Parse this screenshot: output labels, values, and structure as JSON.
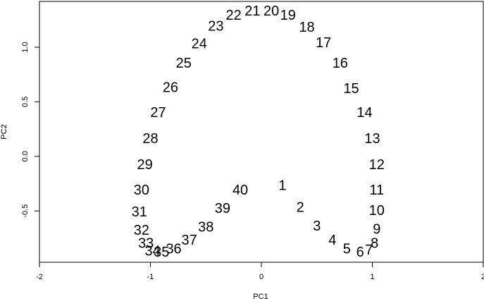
{
  "chart_data": {
    "type": "scatter",
    "title": "",
    "xlabel": "PC1",
    "ylabel": "PC2",
    "xlim": [
      -2,
      2
    ],
    "ylim": [
      -0.97,
      1.42
    ],
    "x_ticks": [
      -2,
      -1,
      0,
      1,
      2
    ],
    "x_tick_labels": [
      "-2",
      "-1",
      "0",
      "1",
      "2"
    ],
    "y_ticks": [
      -0.5,
      0.0,
      0.5,
      1.0
    ],
    "y_tick_labels": [
      "-0.5",
      "0.0",
      "0.5",
      "1.0"
    ],
    "grid": false,
    "legend": "none",
    "marker": "text labels",
    "points": [
      {
        "label": "1",
        "x": 0.19,
        "y": -0.27
      },
      {
        "label": "2",
        "x": 0.35,
        "y": -0.47
      },
      {
        "label": "3",
        "x": 0.5,
        "y": -0.64
      },
      {
        "label": "4",
        "x": 0.64,
        "y": -0.77
      },
      {
        "label": "5",
        "x": 0.77,
        "y": -0.85
      },
      {
        "label": "6",
        "x": 0.89,
        "y": -0.88
      },
      {
        "label": "7",
        "x": 0.97,
        "y": -0.86
      },
      {
        "label": "8",
        "x": 1.02,
        "y": -0.8
      },
      {
        "label": "9",
        "x": 1.04,
        "y": -0.67
      },
      {
        "label": "10",
        "x": 1.04,
        "y": -0.5
      },
      {
        "label": "11",
        "x": 1.04,
        "y": -0.31
      },
      {
        "label": "12",
        "x": 1.04,
        "y": -0.08
      },
      {
        "label": "13",
        "x": 1.0,
        "y": 0.16
      },
      {
        "label": "14",
        "x": 0.93,
        "y": 0.4
      },
      {
        "label": "15",
        "x": 0.81,
        "y": 0.62
      },
      {
        "label": "16",
        "x": 0.71,
        "y": 0.85
      },
      {
        "label": "17",
        "x": 0.56,
        "y": 1.04
      },
      {
        "label": "18",
        "x": 0.41,
        "y": 1.18
      },
      {
        "label": "19",
        "x": 0.24,
        "y": 1.29
      },
      {
        "label": "20",
        "x": 0.09,
        "y": 1.33
      },
      {
        "label": "21",
        "x": -0.08,
        "y": 1.33
      },
      {
        "label": "22",
        "x": -0.25,
        "y": 1.29
      },
      {
        "label": "23",
        "x": -0.41,
        "y": 1.19
      },
      {
        "label": "24",
        "x": -0.56,
        "y": 1.03
      },
      {
        "label": "25",
        "x": -0.7,
        "y": 0.85
      },
      {
        "label": "26",
        "x": -0.82,
        "y": 0.63
      },
      {
        "label": "27",
        "x": -0.93,
        "y": 0.4
      },
      {
        "label": "28",
        "x": -1.0,
        "y": 0.16
      },
      {
        "label": "29",
        "x": -1.05,
        "y": -0.08
      },
      {
        "label": "30",
        "x": -1.08,
        "y": -0.31
      },
      {
        "label": "31",
        "x": -1.1,
        "y": -0.51
      },
      {
        "label": "32",
        "x": -1.08,
        "y": -0.68
      },
      {
        "label": "33",
        "x": -1.04,
        "y": -0.8
      },
      {
        "label": "34",
        "x": -0.98,
        "y": -0.87
      },
      {
        "label": "35",
        "x": -0.9,
        "y": -0.88
      },
      {
        "label": "36",
        "x": -0.79,
        "y": -0.85
      },
      {
        "label": "37",
        "x": -0.65,
        "y": -0.77
      },
      {
        "label": "38",
        "x": -0.5,
        "y": -0.65
      },
      {
        "label": "39",
        "x": -0.35,
        "y": -0.48
      },
      {
        "label": "40",
        "x": -0.19,
        "y": -0.31
      }
    ]
  }
}
